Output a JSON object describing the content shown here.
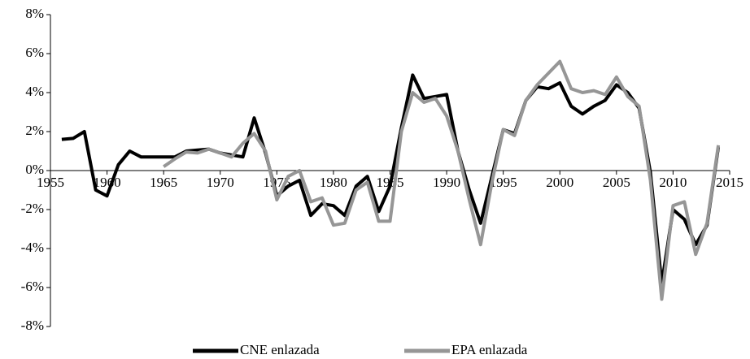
{
  "chart_data": {
    "type": "line",
    "series": [
      {
        "name": "CNE enlazada",
        "color": "#000000",
        "x": [
          1956,
          1957,
          1958,
          1959,
          1960,
          1961,
          1962,
          1963,
          1964,
          1965,
          1966,
          1967,
          1968,
          1969,
          1970,
          1971,
          1972,
          1973,
          1974,
          1975,
          1976,
          1977,
          1978,
          1979,
          1980,
          1981,
          1982,
          1983,
          1984,
          1985,
          1986,
          1987,
          1988,
          1989,
          1990,
          1991,
          1992,
          1993,
          1994,
          1995,
          1996,
          1997,
          1998,
          1999,
          2000,
          2001,
          2002,
          2003,
          2004,
          2005,
          2006,
          2007,
          2008,
          2009,
          2010,
          2011,
          2012,
          2013,
          2014
        ],
        "values": [
          1.6,
          1.65,
          2.0,
          -1.0,
          -1.3,
          0.3,
          1.0,
          0.7,
          0.7,
          0.7,
          0.7,
          1.0,
          1.05,
          1.1,
          0.9,
          0.8,
          0.7,
          2.7,
          0.9,
          -1.3,
          -0.8,
          -0.5,
          -2.3,
          -1.7,
          -1.8,
          -2.3,
          -0.8,
          -0.3,
          -2.1,
          -0.8,
          2.2,
          4.9,
          3.7,
          3.8,
          3.9,
          1.0,
          -1.0,
          -2.7,
          -0.3,
          2.1,
          1.9,
          3.6,
          4.3,
          4.2,
          4.5,
          3.3,
          2.9,
          3.3,
          3.6,
          4.4,
          4.0,
          3.2,
          -0.1,
          -5.8,
          -2.0,
          -2.5,
          -3.8,
          -2.8,
          1.2
        ]
      },
      {
        "name": "EPA enlazada",
        "color": "#969696",
        "x": [
          1965,
          1966,
          1967,
          1968,
          1969,
          1970,
          1971,
          1972,
          1973,
          1974,
          1975,
          1976,
          1977,
          1978,
          1979,
          1980,
          1981,
          1982,
          1983,
          1984,
          1985,
          1986,
          1987,
          1988,
          1989,
          1990,
          1991,
          1992,
          1993,
          1994,
          1995,
          1996,
          1997,
          1998,
          1999,
          2000,
          2001,
          2002,
          2003,
          2004,
          2005,
          2006,
          2007,
          2008,
          2009,
          2010,
          2011,
          2012,
          2013,
          2014
        ],
        "values": [
          0.2,
          0.6,
          0.95,
          0.9,
          1.1,
          0.9,
          0.7,
          1.4,
          1.9,
          1.0,
          -1.5,
          -0.3,
          0.0,
          -1.6,
          -1.4,
          -2.8,
          -2.7,
          -1.0,
          -0.6,
          -2.6,
          -2.6,
          2.0,
          4.0,
          3.5,
          3.7,
          2.8,
          1.0,
          -1.5,
          -3.8,
          -0.6,
          2.1,
          1.8,
          3.6,
          4.4,
          5.0,
          5.6,
          4.2,
          4.0,
          4.1,
          3.9,
          4.8,
          3.8,
          3.3,
          -0.5,
          -6.6,
          -1.8,
          -1.6,
          -4.3,
          -2.7,
          1.3
        ]
      }
    ],
    "xlim": [
      1955,
      2015
    ],
    "xticks": [
      1955,
      1960,
      1965,
      1970,
      1975,
      1980,
      1985,
      1990,
      1995,
      2000,
      2005,
      2010,
      2015
    ],
    "ylim": [
      -8,
      8
    ],
    "yticks": [
      {
        "value": -8,
        "label": "-8%"
      },
      {
        "value": -6,
        "label": "-6%"
      },
      {
        "value": -4,
        "label": "-4%"
      },
      {
        "value": -2,
        "label": "-2%"
      },
      {
        "value": 0,
        "label": "0%"
      },
      {
        "value": 2,
        "label": "2%"
      },
      {
        "value": 4,
        "label": "4%"
      },
      {
        "value": 6,
        "label": "6%"
      },
      {
        "value": 8,
        "label": "8%"
      }
    ],
    "legend": "bottom"
  }
}
